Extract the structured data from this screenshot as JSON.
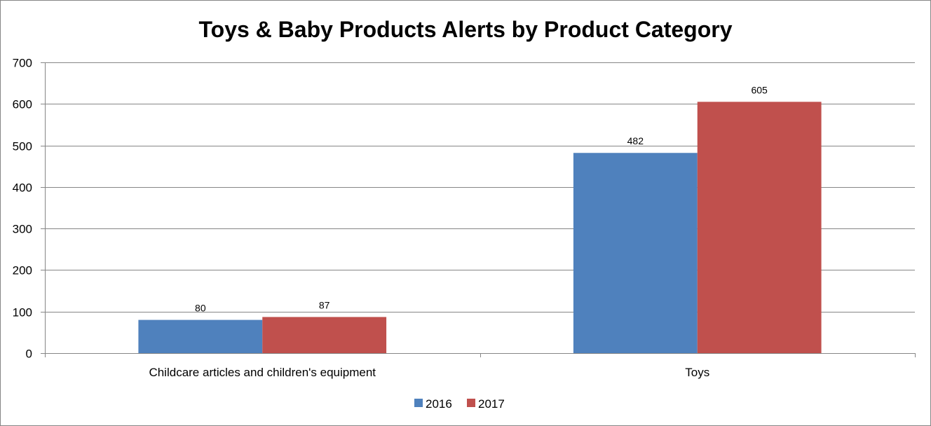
{
  "chart_data": {
    "type": "bar",
    "title": "Toys & Baby Products Alerts by Product Category",
    "xlabel": "",
    "ylabel": "",
    "categories": [
      "Childcare articles and children's equipment",
      "Toys"
    ],
    "series": [
      {
        "name": "2016",
        "values": [
          80,
          482
        ],
        "color": "#4F81BD"
      },
      {
        "name": "2017",
        "values": [
          87,
          605
        ],
        "color": "#C0504D"
      }
    ],
    "ylim": [
      0,
      700
    ],
    "yticks": [
      0,
      100,
      200,
      300,
      400,
      500,
      600,
      700
    ],
    "grid": true,
    "legend_position": "bottom",
    "data_labels": true
  }
}
